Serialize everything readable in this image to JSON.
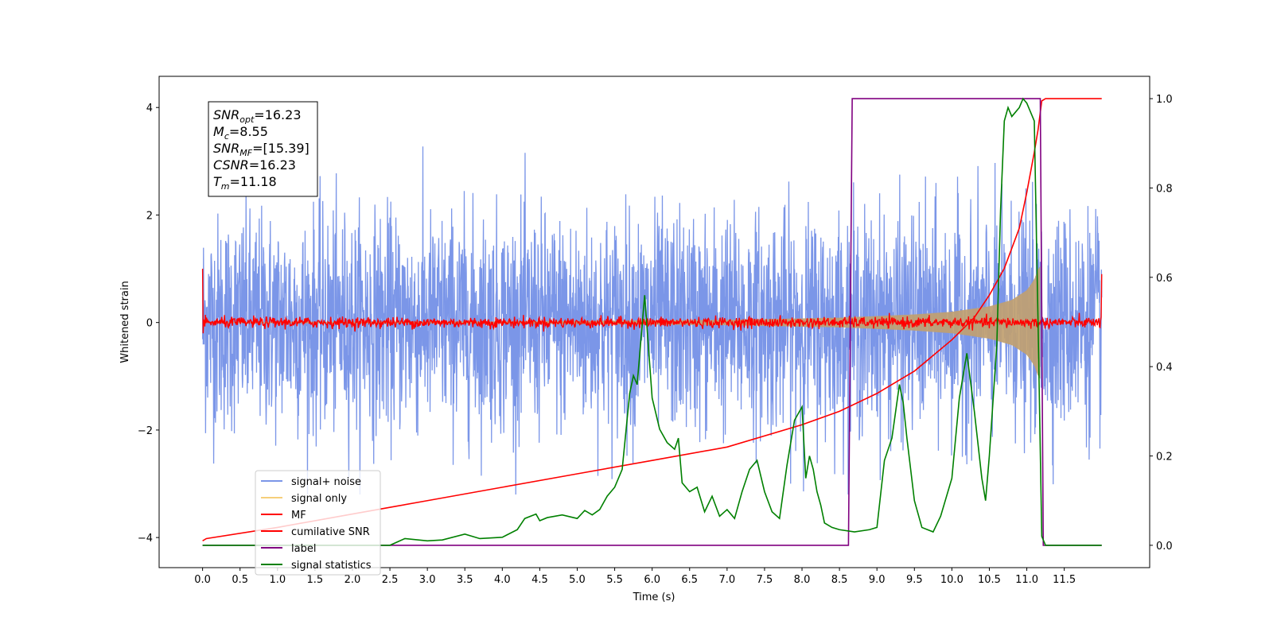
{
  "chart_data": {
    "type": "line",
    "xlabel": "Time (s)",
    "ylabel": "Whitened strain",
    "x_ticks": [
      "0.0",
      "0.5",
      "1.0",
      "1.5",
      "2.0",
      "2.5",
      "3.0",
      "3.5",
      "4.0",
      "4.5",
      "5.0",
      "5.5",
      "6.0",
      "6.5",
      "7.0",
      "7.5",
      "8.0",
      "8.5",
      "9.0",
      "9.5",
      "10.0",
      "10.5",
      "11.0",
      "11.5"
    ],
    "y_left_ticks": [
      "4",
      "2",
      "0",
      "−2",
      "−4"
    ],
    "y_right_ticks": [
      "1.0",
      "0.8",
      "0.6",
      "0.4",
      "0.2",
      "0.0"
    ],
    "xlim": [
      -0.58,
      12.64
    ],
    "ylim_left": [
      -4.56,
      4.58
    ],
    "ylim_right": [
      -0.05,
      1.05
    ],
    "annotations": [
      {
        "base": "SNR",
        "sub": "opt",
        "value": "=16.23"
      },
      {
        "base": "M",
        "sub": "c",
        "value": "=8.55"
      },
      {
        "base": "SNR",
        "sub": "MF",
        "value": "=[15.39]"
      },
      {
        "base": "CSNR",
        "sub": "",
        "value": "=16.23"
      },
      {
        "base": "T",
        "sub": "m",
        "value": "=11.18"
      }
    ],
    "legend": {
      "position": "lower-left",
      "entries": [
        {
          "label": "signal+ noise",
          "color": "#7b96e8"
        },
        {
          "label": "signal only",
          "color": "#f6cf7a"
        },
        {
          "label": "MF",
          "color": "#ff0000"
        },
        {
          "label": "cumilative SNR",
          "color": "#ff0000"
        },
        {
          "label": "label",
          "color": "#800080"
        },
        {
          "label": "signal statistics",
          "color": "#008000"
        }
      ]
    },
    "series": [
      {
        "name": "signal+ noise",
        "axis": "left",
        "color": "#7b96e8",
        "x_range": [
          0,
          12.0
        ],
        "noise_sigma": 1.0,
        "peak_min": -3.2,
        "peak_max": 4.15
      },
      {
        "name": "signal only",
        "axis": "left",
        "color": "#c0a070",
        "x_range": [
          0,
          11.18
        ],
        "envelope": {
          "x": [
            0,
            4.0,
            7.0,
            8.5,
            9.5,
            10.0,
            10.5,
            10.8,
            11.0,
            11.1,
            11.15,
            11.18
          ],
          "y": [
            0.01,
            0.02,
            0.05,
            0.09,
            0.15,
            0.2,
            0.3,
            0.42,
            0.6,
            0.8,
            1.0,
            1.05
          ]
        }
      },
      {
        "name": "MF",
        "axis": "left",
        "color": "#ff0000",
        "x_range": [
          0,
          12.0
        ],
        "noise_sigma": 0.05,
        "start": 1.0,
        "end": 0.9
      },
      {
        "name": "cumilative SNR",
        "axis": "right",
        "color": "#ff0000",
        "x": [
          0,
          0.05,
          1.0,
          2.0,
          3.0,
          4.0,
          5.0,
          6.0,
          7.0,
          8.0,
          8.5,
          9.0,
          9.5,
          10.0,
          10.3,
          10.5,
          10.7,
          10.9,
          11.0,
          11.1,
          11.15,
          11.2,
          11.25,
          12.0
        ],
        "y": [
          0.01,
          0.015,
          0.04,
          0.07,
          0.1,
          0.13,
          0.16,
          0.19,
          0.22,
          0.27,
          0.3,
          0.34,
          0.39,
          0.46,
          0.51,
          0.56,
          0.62,
          0.71,
          0.79,
          0.88,
          0.93,
          0.995,
          1.0,
          1.0
        ]
      },
      {
        "name": "label",
        "axis": "right",
        "color": "#800080",
        "x": [
          0,
          8.62,
          8.67,
          11.18,
          11.22,
          12.0
        ],
        "y": [
          0,
          0,
          1,
          1,
          0,
          0
        ]
      },
      {
        "name": "signal statistics",
        "axis": "right",
        "color": "#008000",
        "x": [
          0,
          2.5,
          2.7,
          3.0,
          3.2,
          3.5,
          3.7,
          4.0,
          4.2,
          4.3,
          4.45,
          4.5,
          4.6,
          4.8,
          5.0,
          5.1,
          5.2,
          5.3,
          5.4,
          5.5,
          5.6,
          5.7,
          5.75,
          5.8,
          5.9,
          6.0,
          6.1,
          6.2,
          6.3,
          6.35,
          6.4,
          6.5,
          6.6,
          6.7,
          6.8,
          6.9,
          7.0,
          7.1,
          7.2,
          7.3,
          7.4,
          7.5,
          7.6,
          7.7,
          7.8,
          7.9,
          8.0,
          8.05,
          8.1,
          8.15,
          8.2,
          8.25,
          8.3,
          8.4,
          8.5,
          8.7,
          8.9,
          9.0,
          9.1,
          9.2,
          9.3,
          9.35,
          9.4,
          9.5,
          9.6,
          9.75,
          9.85,
          10.0,
          10.1,
          10.2,
          10.3,
          10.4,
          10.45,
          10.5,
          10.6,
          10.65,
          10.7,
          10.75,
          10.8,
          10.85,
          10.9,
          10.95,
          11.0,
          11.1,
          11.15,
          11.2,
          11.25,
          12.0
        ],
        "y": [
          0.0,
          0.0,
          0.015,
          0.01,
          0.012,
          0.025,
          0.015,
          0.018,
          0.035,
          0.06,
          0.07,
          0.055,
          0.062,
          0.068,
          0.06,
          0.078,
          0.068,
          0.08,
          0.11,
          0.13,
          0.17,
          0.34,
          0.38,
          0.36,
          0.56,
          0.33,
          0.26,
          0.23,
          0.215,
          0.24,
          0.14,
          0.12,
          0.13,
          0.075,
          0.11,
          0.065,
          0.08,
          0.06,
          0.12,
          0.17,
          0.19,
          0.12,
          0.075,
          0.06,
          0.18,
          0.28,
          0.31,
          0.15,
          0.2,
          0.17,
          0.12,
          0.09,
          0.05,
          0.04,
          0.035,
          0.03,
          0.035,
          0.04,
          0.19,
          0.24,
          0.36,
          0.32,
          0.24,
          0.1,
          0.04,
          0.03,
          0.065,
          0.15,
          0.33,
          0.43,
          0.3,
          0.15,
          0.1,
          0.2,
          0.45,
          0.75,
          0.95,
          0.98,
          0.96,
          0.97,
          0.98,
          1.0,
          0.99,
          0.95,
          0.5,
          0.02,
          0.0,
          0.0
        ]
      }
    ]
  }
}
